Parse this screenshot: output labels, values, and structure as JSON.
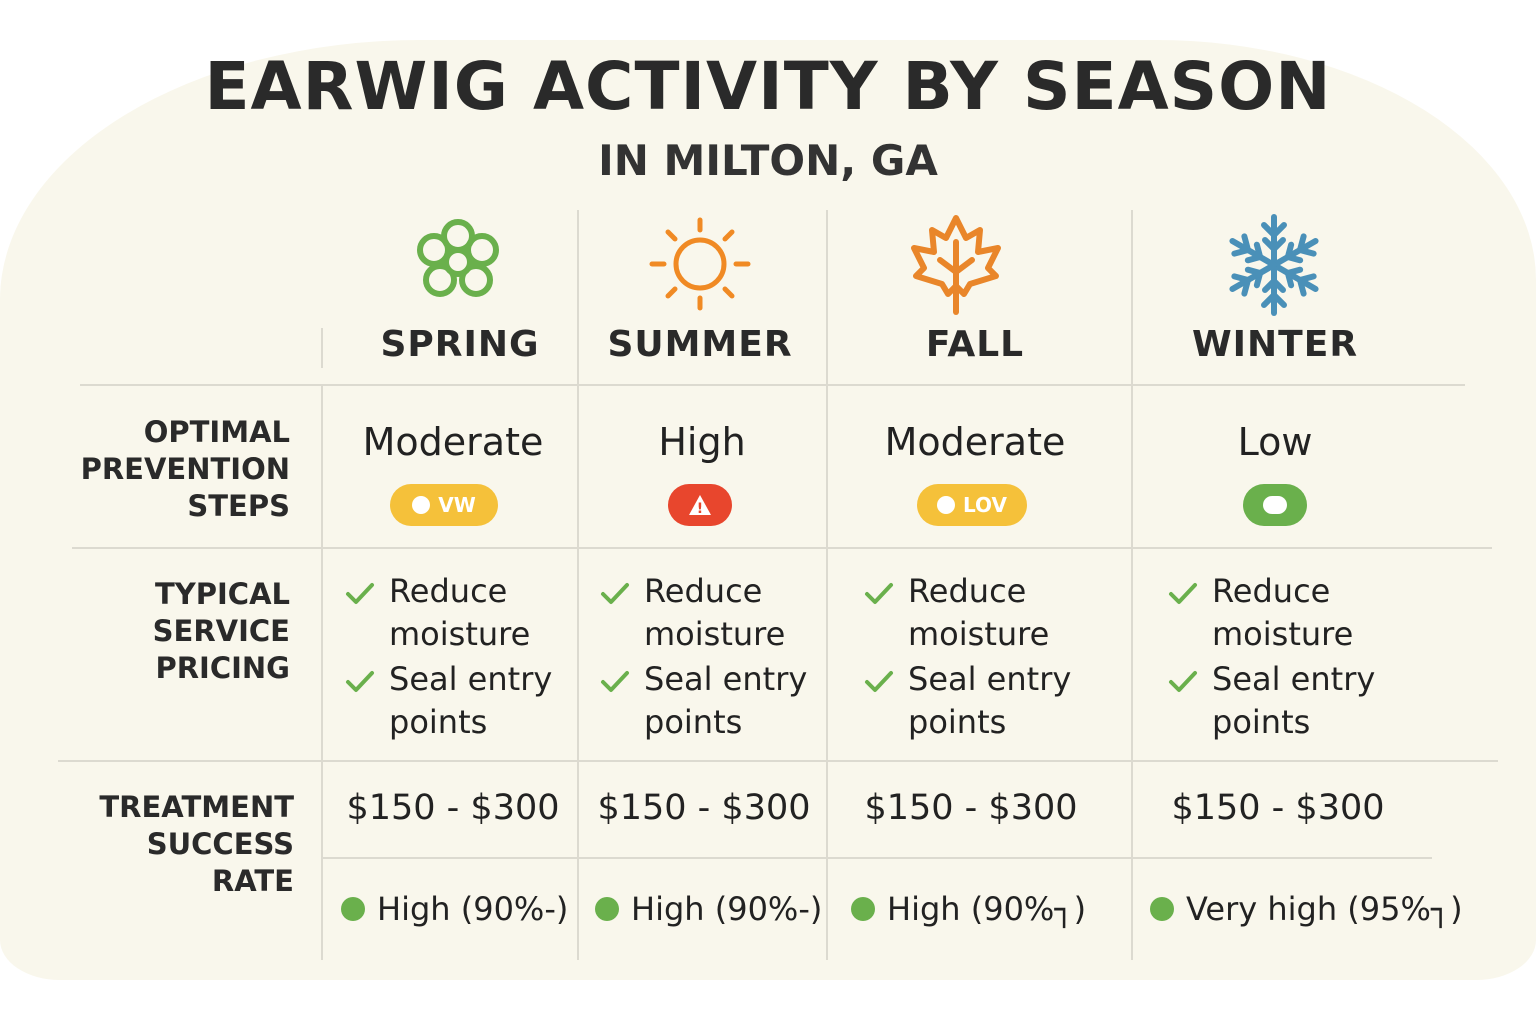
{
  "title": "EARWIG ACTIVITY BY SEASON",
  "subtitle": "IN MILTON, GA",
  "row_labels": {
    "activity": "OPTIMAL\nPREVENTION\nSTEPS",
    "steps": "TYPICAL\nSERVICE\nPRICING",
    "pricing": "TREATMENT\nSUCCESS\nRATE"
  },
  "colors": {
    "spring": "#6ab04c",
    "summer": "#f08a24",
    "fall": "#e9862a",
    "winter": "#4a90b8",
    "badge_moderate": "#f5c13a",
    "badge_high": "#e8462d",
    "badge_low": "#6ab04c",
    "check": "#6ab04c"
  },
  "seasons": [
    {
      "name": "SPRING",
      "icon": "flower-icon",
      "activity": "Moderate",
      "badge": {
        "text": "VW",
        "level": "moderate"
      },
      "steps": [
        "Reduce moisture",
        "Seal entry points"
      ],
      "price": "$150 - $300",
      "rate": "High (90%-)"
    },
    {
      "name": "SUMMER",
      "icon": "sun-icon",
      "activity": "High",
      "badge": {
        "text": "!",
        "level": "high"
      },
      "steps": [
        "Reduce moisture",
        "Seal entry points"
      ],
      "price": "$150 - $300",
      "rate": "High (90%-)"
    },
    {
      "name": "FALL",
      "icon": "maple-leaf-icon",
      "activity": "Moderate",
      "badge": {
        "text": "LOV",
        "level": "moderate"
      },
      "steps": [
        "Reduce moisture",
        "Seal entry points"
      ],
      "price": "$150 - $300",
      "rate": "High (90%┐)"
    },
    {
      "name": "WINTER",
      "icon": "snowflake-icon",
      "activity": "Low",
      "badge": {
        "text": "",
        "level": "low"
      },
      "steps": [
        "Reduce moisture",
        "Seal entry points"
      ],
      "price": "$150 - $300",
      "rate": "Very high (95%┐)"
    }
  ]
}
